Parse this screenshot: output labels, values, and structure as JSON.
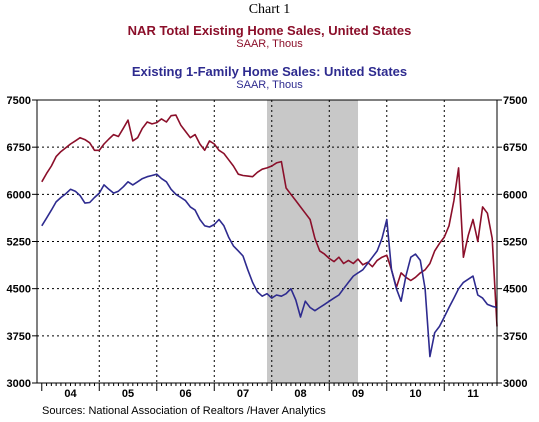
{
  "header": {
    "chart_number": "Chart 1",
    "title1": "NAR Total Existing Home Sales, United States",
    "subtitle1": "SAAR, Thous",
    "title2": "Existing 1-Family Home Sales: United States",
    "subtitle2": "SAAR, Thous"
  },
  "footer": {
    "source": "Sources:  National Association of Realtors /Haver Analytics"
  },
  "colors": {
    "total": "#8b0f2a",
    "single_family": "#2e2b8f",
    "recession": "#c8c8c8"
  },
  "chart_data": {
    "type": "line",
    "ylim": [
      3000,
      7500
    ],
    "yticks": [
      3000,
      3750,
      4500,
      5250,
      6000,
      6750,
      7500
    ],
    "ytick_labels": [
      "3000",
      "3750",
      "4500",
      "5250",
      "6000",
      "6750",
      "7500"
    ],
    "xlim": [
      2003.917,
      2011.917
    ],
    "xtick_labels": [
      "04",
      "05",
      "06",
      "07",
      "08",
      "09",
      "10",
      "11"
    ],
    "grid": true,
    "recession": [
      2007.917,
      2009.5
    ],
    "series": [
      {
        "name": "NAR Total Existing Home Sales, United States",
        "points": [
          [
            2004.0,
            6200
          ],
          [
            2004.083,
            6330
          ],
          [
            2004.167,
            6450
          ],
          [
            2004.25,
            6600
          ],
          [
            2004.333,
            6680
          ],
          [
            2004.417,
            6740
          ],
          [
            2004.5,
            6800
          ],
          [
            2004.583,
            6850
          ],
          [
            2004.667,
            6900
          ],
          [
            2004.75,
            6870
          ],
          [
            2004.833,
            6820
          ],
          [
            2004.917,
            6700
          ],
          [
            2005.0,
            6700
          ],
          [
            2005.083,
            6800
          ],
          [
            2005.167,
            6880
          ],
          [
            2005.25,
            6950
          ],
          [
            2005.333,
            6920
          ],
          [
            2005.417,
            7050
          ],
          [
            2005.5,
            7180
          ],
          [
            2005.583,
            6850
          ],
          [
            2005.667,
            6900
          ],
          [
            2005.75,
            7050
          ],
          [
            2005.833,
            7150
          ],
          [
            2005.917,
            7120
          ],
          [
            2006.0,
            7140
          ],
          [
            2006.083,
            7200
          ],
          [
            2006.167,
            7150
          ],
          [
            2006.25,
            7250
          ],
          [
            2006.333,
            7260
          ],
          [
            2006.417,
            7100
          ],
          [
            2006.5,
            7000
          ],
          [
            2006.583,
            6900
          ],
          [
            2006.667,
            6950
          ],
          [
            2006.75,
            6800
          ],
          [
            2006.833,
            6700
          ],
          [
            2006.917,
            6850
          ],
          [
            2007.0,
            6800
          ],
          [
            2007.083,
            6700
          ],
          [
            2007.167,
            6650
          ],
          [
            2007.25,
            6550
          ],
          [
            2007.333,
            6450
          ],
          [
            2007.417,
            6320
          ],
          [
            2007.5,
            6300
          ],
          [
            2007.583,
            6290
          ],
          [
            2007.667,
            6280
          ],
          [
            2007.75,
            6350
          ],
          [
            2007.833,
            6400
          ],
          [
            2007.917,
            6420
          ],
          [
            2008.0,
            6450
          ],
          [
            2008.083,
            6500
          ],
          [
            2008.167,
            6520
          ],
          [
            2008.25,
            6100
          ],
          [
            2008.333,
            6000
          ],
          [
            2008.417,
            5900
          ],
          [
            2008.5,
            5800
          ],
          [
            2008.583,
            5700
          ],
          [
            2008.667,
            5600
          ],
          [
            2008.75,
            5300
          ],
          [
            2008.833,
            5100
          ],
          [
            2008.917,
            5050
          ],
          [
            2009.0,
            4980
          ],
          [
            2009.083,
            4930
          ],
          [
            2009.167,
            5000
          ],
          [
            2009.25,
            4900
          ],
          [
            2009.333,
            4950
          ],
          [
            2009.417,
            4900
          ],
          [
            2009.5,
            4970
          ],
          [
            2009.583,
            4880
          ],
          [
            2009.667,
            4920
          ],
          [
            2009.75,
            4850
          ],
          [
            2009.833,
            4950
          ],
          [
            2009.917,
            5000
          ],
          [
            2010.0,
            5030
          ],
          [
            2010.083,
            4800
          ],
          [
            2010.167,
            4520
          ],
          [
            2010.25,
            4750
          ],
          [
            2010.333,
            4680
          ],
          [
            2010.417,
            4630
          ],
          [
            2010.5,
            4680
          ],
          [
            2010.583,
            4750
          ],
          [
            2010.667,
            4800
          ],
          [
            2010.75,
            4900
          ],
          [
            2010.833,
            5100
          ],
          [
            2010.917,
            5220
          ],
          [
            2011.0,
            5320
          ],
          [
            2011.083,
            5500
          ],
          [
            2011.167,
            5900
          ],
          [
            2011.25,
            6420
          ],
          [
            2011.333,
            5000
          ],
          [
            2011.417,
            5350
          ],
          [
            2011.5,
            5600
          ],
          [
            2011.583,
            5250
          ],
          [
            2011.667,
            5800
          ],
          [
            2011.75,
            5700
          ],
          [
            2011.833,
            5300
          ],
          [
            2011.917,
            3900
          ]
        ]
      },
      {
        "name": "Existing 1-Family Home Sales: United States",
        "points": [
          [
            2004.0,
            5500
          ],
          [
            2004.083,
            5620
          ],
          [
            2004.167,
            5750
          ],
          [
            2004.25,
            5880
          ],
          [
            2004.333,
            5950
          ],
          [
            2004.417,
            6010
          ],
          [
            2004.5,
            6080
          ],
          [
            2004.583,
            6050
          ],
          [
            2004.667,
            5980
          ],
          [
            2004.75,
            5860
          ],
          [
            2004.833,
            5870
          ],
          [
            2004.917,
            5950
          ],
          [
            2005.0,
            6020
          ],
          [
            2005.083,
            6150
          ],
          [
            2005.167,
            6080
          ],
          [
            2005.25,
            6020
          ],
          [
            2005.333,
            6050
          ],
          [
            2005.417,
            6120
          ],
          [
            2005.5,
            6200
          ],
          [
            2005.583,
            6150
          ],
          [
            2005.667,
            6200
          ],
          [
            2005.75,
            6250
          ],
          [
            2005.833,
            6280
          ],
          [
            2005.917,
            6300
          ],
          [
            2006.0,
            6320
          ],
          [
            2006.083,
            6250
          ],
          [
            2006.167,
            6200
          ],
          [
            2006.25,
            6080
          ],
          [
            2006.333,
            6000
          ],
          [
            2006.417,
            5950
          ],
          [
            2006.5,
            5900
          ],
          [
            2006.583,
            5800
          ],
          [
            2006.667,
            5750
          ],
          [
            2006.75,
            5600
          ],
          [
            2006.833,
            5500
          ],
          [
            2006.917,
            5480
          ],
          [
            2007.0,
            5520
          ],
          [
            2007.083,
            5600
          ],
          [
            2007.167,
            5500
          ],
          [
            2007.25,
            5320
          ],
          [
            2007.333,
            5180
          ],
          [
            2007.417,
            5100
          ],
          [
            2007.5,
            5020
          ],
          [
            2007.583,
            4800
          ],
          [
            2007.667,
            4600
          ],
          [
            2007.75,
            4450
          ],
          [
            2007.833,
            4380
          ],
          [
            2007.917,
            4420
          ],
          [
            2008.0,
            4350
          ],
          [
            2008.083,
            4400
          ],
          [
            2008.167,
            4380
          ],
          [
            2008.25,
            4420
          ],
          [
            2008.333,
            4500
          ],
          [
            2008.417,
            4320
          ],
          [
            2008.5,
            4050
          ],
          [
            2008.583,
            4300
          ],
          [
            2008.667,
            4200
          ],
          [
            2008.75,
            4150
          ],
          [
            2008.833,
            4200
          ],
          [
            2008.917,
            4250
          ],
          [
            2009.0,
            4300
          ],
          [
            2009.083,
            4350
          ],
          [
            2009.167,
            4400
          ],
          [
            2009.25,
            4500
          ],
          [
            2009.333,
            4600
          ],
          [
            2009.417,
            4700
          ],
          [
            2009.5,
            4750
          ],
          [
            2009.583,
            4800
          ],
          [
            2009.667,
            4900
          ],
          [
            2009.75,
            5000
          ],
          [
            2009.833,
            5100
          ],
          [
            2009.917,
            5300
          ],
          [
            2010.0,
            5600
          ],
          [
            2010.083,
            4800
          ],
          [
            2010.167,
            4500
          ],
          [
            2010.25,
            4300
          ],
          [
            2010.333,
            4700
          ],
          [
            2010.417,
            5000
          ],
          [
            2010.5,
            5050
          ],
          [
            2010.583,
            4950
          ],
          [
            2010.667,
            4500
          ],
          [
            2010.75,
            3420
          ],
          [
            2010.833,
            3800
          ],
          [
            2010.917,
            3900
          ],
          [
            2011.0,
            4050
          ],
          [
            2011.083,
            4200
          ],
          [
            2011.167,
            4350
          ],
          [
            2011.25,
            4500
          ],
          [
            2011.333,
            4600
          ],
          [
            2011.417,
            4650
          ],
          [
            2011.5,
            4700
          ],
          [
            2011.583,
            4400
          ],
          [
            2011.667,
            4350
          ],
          [
            2011.75,
            4250
          ],
          [
            2011.833,
            4220
          ],
          [
            2011.917,
            4200
          ]
        ]
      }
    ]
  }
}
